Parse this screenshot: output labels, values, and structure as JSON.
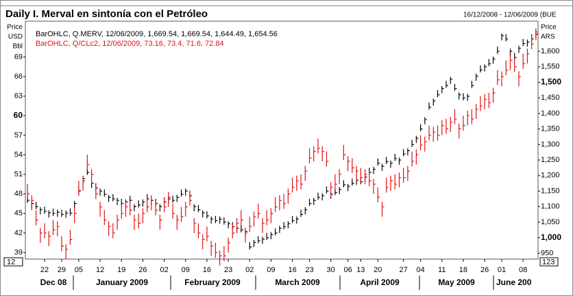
{
  "chart_data": {
    "type": "ohlc",
    "title": "Daily I. Merval en sintonía con el Petróleo",
    "subtitle": "16/12/2008 - 12/06/2009 (BUE",
    "y_label": [
      "Price",
      "USD",
      "Bbl"
    ],
    "y2_label": [
      "Price",
      "ARS"
    ],
    "corner_left": "12",
    "corner_right": "123",
    "categories": [
      null,
      null,
      null,
      null,
      "22",
      null,
      null,
      null,
      "29",
      null,
      null,
      null,
      "05",
      null,
      null,
      null,
      null,
      "12",
      null,
      null,
      null,
      null,
      "19",
      null,
      null,
      null,
      null,
      "26",
      null,
      null,
      null,
      null,
      "02",
      null,
      null,
      null,
      null,
      "09",
      null,
      null,
      null,
      null,
      "16",
      null,
      null,
      null,
      null,
      "23",
      null,
      null,
      null,
      null,
      "02",
      null,
      null,
      null,
      null,
      "09",
      null,
      null,
      null,
      null,
      "16",
      null,
      null,
      null,
      "23",
      null,
      null,
      null,
      null,
      "30",
      null,
      null,
      null,
      "06",
      null,
      null,
      "13",
      null,
      null,
      null,
      "20",
      null,
      null,
      null,
      null,
      null,
      "27",
      null,
      null,
      null,
      "04",
      null,
      null,
      null,
      null,
      "11",
      null,
      null,
      null,
      null,
      "18",
      null,
      null,
      null,
      null,
      "26",
      null,
      null,
      null,
      "01",
      null,
      null,
      null,
      null,
      "08",
      null,
      null,
      null
    ],
    "months": [
      "Dec 08",
      "January 2009",
      "February 2009",
      "March 2009",
      "April 2009",
      "May 2009",
      "June 200"
    ],
    "ylim": [
      38,
      74.5
    ],
    "yticks": [
      39,
      42,
      45,
      48,
      51,
      54,
      57,
      60,
      63,
      66,
      69
    ],
    "y2lim": [
      931,
      1697
    ],
    "y2ticks": [
      950,
      {
        "value": 1000,
        "label": "1,000"
      },
      {
        "value": 1050,
        "label": "1,050"
      },
      {
        "value": 1100,
        "label": "1,100"
      },
      {
        "value": 1150,
        "label": "1,150"
      },
      {
        "value": 1200,
        "label": "1,200"
      },
      {
        "value": 1250,
        "label": "1,250"
      },
      {
        "value": 1300,
        "label": "1,300"
      },
      {
        "value": 1350,
        "label": "1,350"
      },
      {
        "value": 1400,
        "label": "1,400"
      },
      {
        "value": 1450,
        "label": "1,450"
      },
      {
        "value": 1500,
        "label": "1,500"
      },
      {
        "value": 1550,
        "label": "1,550"
      },
      {
        "value": 1600,
        "label": "1,600"
      }
    ],
    "grid": false,
    "series": [
      {
        "name": "BarOHLC, Q.MERV, 12/06/2009, 1,669.54, 1,669.54, 1,644.49, 1,654.56",
        "color": "#000000",
        "axis": "y2",
        "high": [
          1135,
          1118,
          1115,
          1098,
          1100,
          1088,
          1093,
          1090,
          1090,
          1087,
          1094,
          1118,
          1165,
          1198,
          1225,
          1183,
          1175,
          1158,
          1155,
          1138,
          1140,
          1128,
          1125,
          1123,
          1135,
          1108,
          1120,
          1123,
          1140,
          1128,
          1125,
          1108,
          1130,
          1133,
          1135,
          1138,
          1155,
          1158,
          1150,
          1108,
          1105,
          1088,
          1085,
          1068,
          1070,
          1068,
          1065,
          1053,
          1050,
          1038,
          1040,
          1028,
          985,
          993,
          1005,
          1003,
          1015,
          1018,
          1030,
          1038,
          1050,
          1053,
          1070,
          1068,
          1090,
          1098,
          1125,
          1128,
          1145,
          1143,
          1165,
          1148,
          1160,
          1163,
          1185,
          1173,
          1190,
          1193,
          1195,
          1203,
          1225,
          1228,
          1255,
          1238,
          1260,
          1248,
          1270,
          1258,
          1285,
          1288,
          1315,
          1328,
          1365,
          1388,
          1435,
          1448,
          1475,
          1488,
          1505,
          1518,
          1495,
          1468,
          1465,
          1463,
          1505,
          1528,
          1555,
          1558,
          1575,
          1583,
          1615,
          1658,
          1655,
          1608,
          1595,
          1618,
          1640,
          1638,
          1655,
          1669.54
        ],
        "low": [
          1112,
          1095,
          1092,
          1075,
          1077,
          1065,
          1070,
          1067,
          1067,
          1064,
          1071,
          1095,
          1142,
          1175,
          1202,
          1160,
          1152,
          1135,
          1132,
          1115,
          1117,
          1105,
          1102,
          1100,
          1112,
          1085,
          1097,
          1100,
          1117,
          1105,
          1102,
          1085,
          1107,
          1110,
          1112,
          1115,
          1132,
          1135,
          1127,
          1085,
          1082,
          1065,
          1062,
          1045,
          1047,
          1045,
          1042,
          1030,
          1027,
          1015,
          1017,
          1005,
          962,
          970,
          982,
          980,
          992,
          995,
          1007,
          1015,
          1027,
          1030,
          1047,
          1045,
          1067,
          1075,
          1102,
          1105,
          1122,
          1120,
          1142,
          1125,
          1137,
          1140,
          1162,
          1150,
          1167,
          1170,
          1172,
          1180,
          1202,
          1205,
          1232,
          1215,
          1237,
          1225,
          1247,
          1235,
          1262,
          1265,
          1292,
          1305,
          1342,
          1365,
          1412,
          1425,
          1452,
          1465,
          1482,
          1495,
          1472,
          1445,
          1442,
          1440,
          1482,
          1505,
          1532,
          1535,
          1552,
          1560,
          1592,
          1635,
          1632,
          1585,
          1572,
          1595,
          1617,
          1615,
          1632,
          1644.49
        ],
        "close": [
          1120,
          1110,
          1100,
          1090,
          1085,
          1080,
          1078,
          1082,
          1075,
          1079,
          1079,
          1110,
          1150,
          1190,
          1210,
          1175,
          1160,
          1150,
          1140,
          1130,
          1125,
          1120,
          1110,
          1115,
          1120,
          1100,
          1105,
          1115,
          1125,
          1120,
          1110,
          1100,
          1115,
          1125,
          1120,
          1130,
          1140,
          1150,
          1135,
          1100,
          1090,
          1080,
          1070,
          1060,
          1055,
          1060,
          1050,
          1045,
          1035,
          1030,
          1025,
          1020,
          970,
          985,
          990,
          995,
          1000,
          1010,
          1015,
          1030,
          1035,
          1045,
          1055,
          1060,
          1075,
          1090,
          1110,
          1120,
          1130,
          1135,
          1150,
          1140,
          1145,
          1155,
          1170,
          1165,
          1175,
          1185,
          1180,
          1195,
          1210,
          1220,
          1240,
          1230,
          1245,
          1240,
          1255,
          1250,
          1270,
          1280,
          1300,
          1320,
          1350,
          1380,
          1420,
          1440,
          1460,
          1480,
          1490,
          1510,
          1480,
          1460,
          1450,
          1455,
          1490,
          1520,
          1540,
          1550,
          1560,
          1575,
          1600,
          1650,
          1640,
          1600,
          1580,
          1610,
          1625,
          1630,
          1640,
          1654.56
        ]
      },
      {
        "name": "BarOHLC, Q/CLc2, 12/06/2009, 73.16, 73.4, 71.6, 72.84",
        "color": "#e01010",
        "axis": "y",
        "high": [
          49.5,
          47.8,
          45.5,
          42.8,
          43.5,
          42.3,
          44,
          43.8,
          41.5,
          40.3,
          42.5,
          45.8,
          50,
          50.8,
          54,
          51.8,
          49.5,
          46.8,
          45.5,
          43.8,
          43.5,
          44.8,
          46.5,
          46.8,
          47,
          44.8,
          45,
          45.8,
          47.5,
          47.8,
          47,
          44.8,
          47.5,
          48.3,
          46.5,
          44.8,
          46,
          46.8,
          48.5,
          44.3,
          43.5,
          41.8,
          43,
          40.8,
          40.5,
          39.3,
          40,
          41.3,
          43.5,
          44.3,
          45.5,
          42.8,
          44.5,
          45.3,
          46.5,
          44.3,
          45.5,
          45.8,
          47.5,
          47.8,
          48,
          48.8,
          50.5,
          50.8,
          51,
          52.3,
          55,
          55.3,
          56.5,
          55.3,
          54.5,
          49.8,
          51,
          51.8,
          55.5,
          53.8,
          53.5,
          52.3,
          52,
          51.8,
          51.5,
          50.3,
          49,
          46.8,
          50.5,
          50.8,
          51,
          51.3,
          52,
          52.3,
          54.5,
          54.8,
          57,
          56.8,
          58.5,
          58.3,
          58.5,
          59.3,
          59.5,
          59.8,
          61,
          58.8,
          60,
          60.8,
          61,
          61.8,
          63,
          63.3,
          63.5,
          64.3,
          67,
          66.8,
          68.5,
          69.3,
          69,
          66.8,
          69.5,
          70.3,
          72.5,
          73.4
        ],
        "low": [
          47.2,
          45.5,
          43.2,
          40.5,
          41.2,
          40,
          41.7,
          41.5,
          39.2,
          38,
          40.2,
          43.5,
          47.7,
          48.5,
          51.7,
          49.5,
          47.2,
          44.5,
          43.2,
          41.5,
          41.2,
          42.5,
          44.2,
          44.5,
          44.7,
          42.5,
          42.7,
          43.5,
          45.2,
          45.5,
          44.7,
          42.5,
          45.2,
          46,
          44.2,
          42.5,
          43.7,
          44.5,
          46.2,
          42,
          41.2,
          39.5,
          40.7,
          38.5,
          38.2,
          37,
          37.7,
          39,
          41.2,
          42,
          43.2,
          40.5,
          42.2,
          43,
          44.2,
          42,
          43.2,
          43.5,
          45.2,
          45.5,
          45.7,
          46.5,
          48.2,
          48.5,
          48.7,
          50,
          52.7,
          53,
          54.2,
          53,
          52.2,
          47.5,
          48.7,
          49.5,
          53.2,
          51.5,
          51.2,
          50,
          49.7,
          49.5,
          49.2,
          48,
          46.7,
          44.5,
          48.2,
          48.5,
          48.7,
          49,
          49.7,
          50,
          52.2,
          52.5,
          54.7,
          54.5,
          56.2,
          56,
          56.2,
          57,
          57.2,
          57.5,
          58.7,
          56.5,
          57.7,
          58.5,
          58.7,
          59.5,
          60.7,
          61,
          61.2,
          62,
          64.7,
          64.5,
          66.2,
          67,
          66.7,
          64.5,
          67.2,
          68,
          70.2,
          71.6
        ],
        "close": [
          48,
          47,
          44,
          42,
          42,
          41.5,
          42.5,
          43,
          40,
          39.5,
          41,
          45,
          48.5,
          50,
          52.5,
          51,
          48,
          46,
          44,
          43,
          42,
          44,
          45,
          46,
          45.5,
          44,
          43.5,
          45,
          46,
          47,
          45.5,
          44,
          46,
          47.5,
          45,
          44,
          44.5,
          46,
          47,
          43.5,
          42,
          41,
          41.5,
          40,
          39,
          38.5,
          38.5,
          40.5,
          42,
          43.5,
          44,
          42,
          43,
          44.5,
          45,
          43.5,
          44,
          45,
          46,
          47,
          46.5,
          48,
          49,
          50,
          49.5,
          51.5,
          53.5,
          54.5,
          55,
          54.5,
          53,
          49,
          49.5,
          51,
          54,
          53,
          52,
          51.5,
          50.5,
          51,
          50,
          49.5,
          47.5,
          46,
          49,
          50,
          49.5,
          50.5,
          50.5,
          51.5,
          53,
          54,
          55.5,
          56,
          57,
          57.5,
          57,
          58.5,
          58,
          59,
          59.5,
          58,
          58.5,
          60,
          59.5,
          61,
          61.5,
          62.5,
          62,
          63.5,
          65.5,
          66,
          67,
          68.5,
          67.5,
          66,
          68,
          69.5,
          71,
          72.84
        ]
      }
    ]
  }
}
